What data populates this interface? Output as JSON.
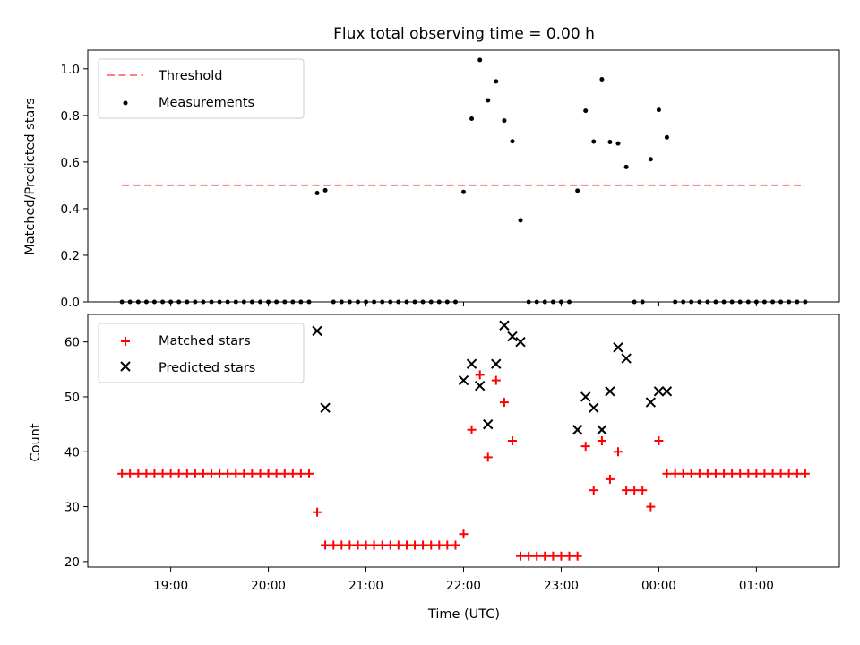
{
  "chart_data": [
    {
      "type": "scatter",
      "title": "Flux total observing time = 0.00 h",
      "xlabel": "",
      "ylabel": "Matched/Predicted stars",
      "ylim": [
        0.0,
        1.08
      ],
      "yticks": [
        0.0,
        0.2,
        0.4,
        0.6,
        0.8,
        1.0
      ],
      "ytick_labels": [
        "0.0",
        "0.2",
        "0.4",
        "0.6",
        "0.8",
        "1.0"
      ],
      "legend_position": "top-left",
      "legend": [
        {
          "label": "Threshold",
          "style": "dashed-line",
          "color": "#ff8080"
        },
        {
          "label": "Measurements",
          "style": "dot",
          "color": "#000000"
        }
      ],
      "threshold": {
        "value": 0.5,
        "x_start": 18.5,
        "x_end": 25.5
      },
      "series": [
        {
          "name": "Measurements",
          "color": "#000000",
          "x": [
            18.5,
            18.583,
            18.667,
            18.75,
            18.833,
            18.917,
            19.0,
            19.083,
            19.167,
            19.25,
            19.333,
            19.417,
            19.5,
            19.583,
            19.667,
            19.75,
            19.833,
            19.917,
            20.0,
            20.083,
            20.167,
            20.25,
            20.333,
            20.417,
            20.5,
            20.583,
            20.667,
            20.75,
            20.833,
            20.917,
            21.0,
            21.083,
            21.167,
            21.25,
            21.333,
            21.417,
            21.5,
            21.583,
            21.667,
            21.75,
            21.833,
            21.917,
            22.0,
            22.083,
            22.167,
            22.25,
            22.333,
            22.417,
            22.5,
            22.583,
            22.667,
            22.75,
            22.833,
            22.917,
            23.0,
            23.083,
            23.167,
            23.25,
            23.333,
            23.417,
            23.5,
            23.583,
            23.667,
            23.75,
            23.833,
            23.917,
            24.0,
            24.083,
            24.167,
            24.25,
            24.333,
            24.417,
            24.5,
            24.583,
            24.667,
            24.75,
            24.833,
            24.917,
            25.0,
            25.083,
            25.167,
            25.25,
            25.333,
            25.417,
            25.5
          ],
          "y": [
            0,
            0,
            0,
            0,
            0,
            0,
            0,
            0,
            0,
            0,
            0,
            0,
            0,
            0,
            0,
            0,
            0,
            0,
            0,
            0,
            0,
            0,
            0,
            0,
            0.467,
            0.479,
            0,
            0,
            0,
            0,
            0,
            0,
            0,
            0,
            0,
            0,
            0,
            0,
            0,
            0,
            0,
            0,
            0.472,
            0.786,
            1.038,
            0.865,
            0.946,
            0.778,
            0.689,
            0.35,
            0,
            0,
            0,
            0,
            0,
            0,
            0.477,
            0.82,
            0.688,
            0.955,
            0.686,
            0.68,
            0.579,
            0,
            0,
            0.612,
            0.824,
            0.706,
            0,
            0,
            0,
            0,
            0,
            0,
            0,
            0,
            0,
            0,
            0,
            0,
            0,
            0,
            0,
            0,
            0
          ]
        }
      ],
      "xlim": [
        18.15,
        25.85
      ]
    },
    {
      "type": "scatter",
      "title": "",
      "xlabel": "Time (UTC)",
      "ylabel": "Count",
      "ylim": [
        19,
        65
      ],
      "yticks": [
        20,
        30,
        40,
        50,
        60
      ],
      "ytick_labels": [
        "20",
        "30",
        "40",
        "50",
        "60"
      ],
      "xlim": [
        18.15,
        25.85
      ],
      "xticks": [
        19,
        20,
        21,
        22,
        23,
        24,
        25
      ],
      "xtick_labels": [
        "19:00",
        "20:00",
        "21:00",
        "22:00",
        "23:00",
        "00:00",
        "01:00"
      ],
      "legend_position": "top-left",
      "legend": [
        {
          "label": "Matched stars",
          "style": "plus",
          "color": "#ff0000"
        },
        {
          "label": "Predicted stars",
          "style": "x",
          "color": "#000000"
        }
      ],
      "series": [
        {
          "name": "Matched stars",
          "color": "#ff0000",
          "x": [
            18.5,
            18.583,
            18.667,
            18.75,
            18.833,
            18.917,
            19.0,
            19.083,
            19.167,
            19.25,
            19.333,
            19.417,
            19.5,
            19.583,
            19.667,
            19.75,
            19.833,
            19.917,
            20.0,
            20.083,
            20.167,
            20.25,
            20.333,
            20.417,
            20.5,
            20.583,
            20.667,
            20.75,
            20.833,
            20.917,
            21.0,
            21.083,
            21.167,
            21.25,
            21.333,
            21.417,
            21.5,
            21.583,
            21.667,
            21.75,
            21.833,
            21.917,
            22.0,
            22.083,
            22.167,
            22.25,
            22.333,
            22.417,
            22.5,
            22.583,
            22.667,
            22.75,
            22.833,
            22.917,
            23.0,
            23.083,
            23.167,
            23.25,
            23.333,
            23.417,
            23.5,
            23.583,
            23.667,
            23.75,
            23.833,
            23.917,
            24.0,
            24.083,
            24.167,
            24.25,
            24.333,
            24.417,
            24.5,
            24.583,
            24.667,
            24.75,
            24.833,
            24.917,
            25.0,
            25.083,
            25.167,
            25.25,
            25.333,
            25.417,
            25.5
          ],
          "y": [
            36,
            36,
            36,
            36,
            36,
            36,
            36,
            36,
            36,
            36,
            36,
            36,
            36,
            36,
            36,
            36,
            36,
            36,
            36,
            36,
            36,
            36,
            36,
            36,
            29,
            23,
            23,
            23,
            23,
            23,
            23,
            23,
            23,
            23,
            23,
            23,
            23,
            23,
            23,
            23,
            23,
            23,
            25,
            44,
            54,
            39,
            53,
            49,
            42,
            21,
            21,
            21,
            21,
            21,
            21,
            21,
            21,
            41,
            33,
            42,
            35,
            40,
            33,
            33,
            33,
            30,
            42,
            36,
            36,
            36,
            36,
            36,
            36,
            36,
            36,
            36,
            36,
            36,
            36,
            36,
            36,
            36,
            36,
            36,
            36
          ]
        },
        {
          "name": "Predicted stars",
          "color": "#000000",
          "x": [
            20.5,
            20.583,
            22.0,
            22.083,
            22.167,
            22.25,
            22.333,
            22.417,
            22.5,
            22.583,
            23.167,
            23.25,
            23.333,
            23.417,
            23.5,
            23.583,
            23.667,
            23.917,
            24.0,
            24.083
          ],
          "y": [
            62,
            48,
            53,
            56,
            52,
            45,
            56,
            63,
            61,
            60,
            44,
            50,
            48,
            44,
            51,
            59,
            57,
            49,
            51,
            51
          ]
        }
      ]
    }
  ]
}
